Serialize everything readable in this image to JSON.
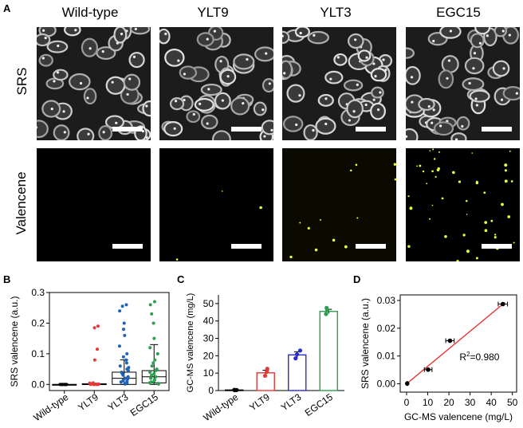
{
  "panels": {
    "a_letter": "A",
    "b_letter": "B",
    "c_letter": "C",
    "d_letter": "D"
  },
  "panel_a": {
    "columns": [
      "Wild-type",
      "YLT9",
      "YLT3",
      "EGC15"
    ],
    "rows": [
      "SRS",
      "Valencene"
    ],
    "colors": {
      "srs_bg": "#1a1a1a",
      "valencene_bg": "#000000",
      "signal": "#e6ff3a"
    }
  },
  "chart_data": [
    {
      "type": "box",
      "panel": "B",
      "ylabel": "SRS valencene (a.u.)",
      "categories": [
        "Wild-type",
        "YLT9",
        "YLT3",
        "EGC15"
      ],
      "yticks": [
        "0.0",
        "0.1",
        "0.2",
        "0.3"
      ],
      "ylim": [
        -0.02,
        0.3
      ],
      "colors": [
        "#000000",
        "#e53935",
        "#1e63b5",
        "#2e9e4f"
      ],
      "boxes": [
        {
          "name": "Wild-type",
          "q1": 0.0,
          "median": 0.0,
          "q3": 0.0,
          "wmin": 0.0,
          "wmax": 0.0,
          "points": [
            0,
            0,
            0,
            0,
            0,
            0,
            0,
            0
          ]
        },
        {
          "name": "YLT9",
          "q1": 0.0,
          "median": 0.0,
          "q3": 0.002,
          "wmin": 0.0,
          "wmax": 0.004,
          "points": [
            0.19,
            0.185,
            0.115,
            0.08,
            0.005,
            0.004,
            0.002,
            0.001,
            0,
            0,
            0,
            0,
            0
          ]
        },
        {
          "name": "YLT3",
          "q1": 0.0,
          "median": 0.02,
          "q3": 0.04,
          "wmin": 0.0,
          "wmax": 0.08,
          "points": [
            0.26,
            0.255,
            0.24,
            0.2,
            0.18,
            0.16,
            0.125,
            0.1,
            0.09,
            0.08,
            0.07,
            0.06,
            0.055,
            0.05,
            0.045,
            0.04,
            0.035,
            0.03,
            0.025,
            0.02,
            0.018,
            0.015,
            0.012,
            0.01,
            0.008,
            0.005,
            0.003,
            0.001
          ]
        },
        {
          "name": "EGC15",
          "q1": 0.005,
          "median": 0.025,
          "q3": 0.045,
          "wmin": 0.0,
          "wmax": 0.13,
          "points": [
            0.27,
            0.26,
            0.23,
            0.2,
            0.15,
            0.12,
            0.1,
            0.08,
            0.07,
            0.06,
            0.05,
            0.045,
            0.04,
            0.035,
            0.03,
            0.025,
            0.02,
            0.015,
            0.01,
            0.008,
            0.005,
            0.003,
            0.001
          ]
        }
      ]
    },
    {
      "type": "bar",
      "panel": "C",
      "ylabel": "GC-MS valencene (mg/L)",
      "categories": [
        "Wild-type",
        "YLT9",
        "YLT3",
        "EGC15"
      ],
      "values": [
        0.3,
        10.2,
        20.5,
        45.5
      ],
      "points": [
        [
          0.2,
          0.3,
          0.4
        ],
        [
          8.5,
          10.8,
          12.5
        ],
        [
          18.5,
          20.8,
          23.0
        ],
        [
          44.0,
          46.2,
          47.5
        ]
      ],
      "errors": [
        0.1,
        1.5,
        1.8,
        1.2
      ],
      "colors": [
        "#000000",
        "#e53935",
        "#2b2bd0",
        "#2e9e4f"
      ],
      "yticks": [
        "0",
        "10",
        "20",
        "30",
        "40",
        "50"
      ],
      "ylim": [
        0,
        55
      ]
    },
    {
      "type": "scatter",
      "panel": "D",
      "xlabel": "GC-MS valencene (mg/L)",
      "ylabel": "SRS valencene (a.u.)",
      "xticks": [
        "0",
        "10",
        "20",
        "30",
        "40",
        "50"
      ],
      "yticks": [
        "0.00",
        "0.01",
        "0.02",
        "0.03"
      ],
      "xlim": [
        -3,
        52
      ],
      "ylim": [
        -0.003,
        0.032
      ],
      "points": [
        {
          "x": 0.3,
          "y": 0.0001,
          "xerr": 0.2
        },
        {
          "x": 10.2,
          "y": 0.0051,
          "xerr": 1.8
        },
        {
          "x": 20.5,
          "y": 0.0155,
          "xerr": 2.0
        },
        {
          "x": 45.5,
          "y": 0.0287,
          "xerr": 2.2
        }
      ],
      "fit": {
        "x0": 0,
        "y0": 0.0,
        "x1": 46.5,
        "y1": 0.0293
      },
      "annotation": {
        "base": "R",
        "sup": "2",
        "rest": "=0.980"
      },
      "colors": {
        "fit": "#e53935",
        "points": "#000000"
      }
    }
  ]
}
